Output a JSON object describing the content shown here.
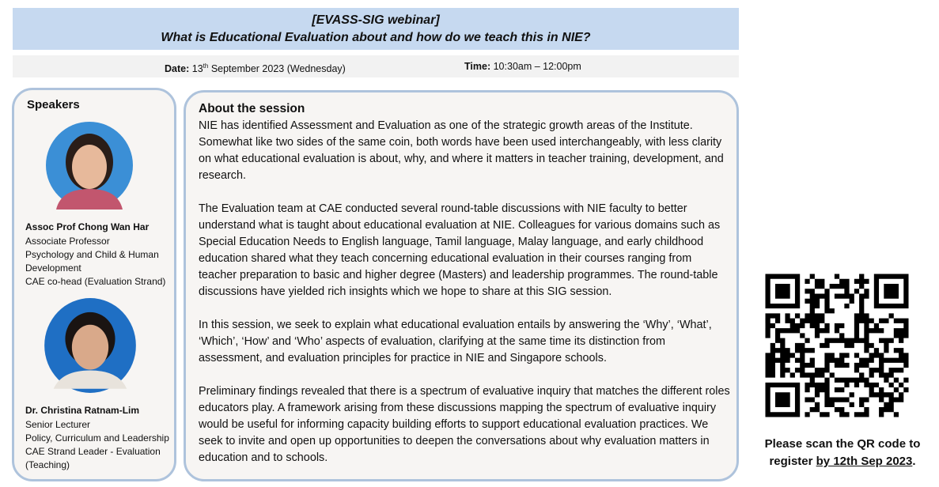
{
  "header": {
    "line1": "[EVASS-SIG webinar]",
    "line2": "What is Educational Evaluation about and how do we teach this in NIE?"
  },
  "date": {
    "label": "Date:",
    "day": "13",
    "suffix": "th",
    "rest": "September 2023 (Wednesday)"
  },
  "time": {
    "label": "Time:",
    "value": "10:30am – 12:00pm"
  },
  "speakers": {
    "title": "Speakers",
    "people": [
      {
        "name": "Assoc Prof Chong Wan Har",
        "roles": [
          "Associate Professor",
          "Psychology and Child & Human Development",
          "CAE co-head (Evaluation Strand)"
        ]
      },
      {
        "name": "Dr. Christina Ratnam-Lim",
        "roles": [
          "Senior Lecturer",
          "Policy, Curriculum and Leadership",
          "CAE Strand Leader - Evaluation (Teaching)"
        ]
      }
    ]
  },
  "session": {
    "title": "About the session",
    "paragraphs": [
      "NIE has identified Assessment and Evaluation as one of the strategic growth areas of the Institute. Somewhat like two sides of the same coin, both words have been used interchangeably, with less clarity on what educational evaluation is about, why, and where it matters in teacher training, development, and research.",
      "The Evaluation team at CAE conducted several round-table discussions with NIE faculty to better understand what is taught about educational evaluation at NIE. Colleagues for various domains such as Special Education Needs to English language, Tamil language, Malay language, and early childhood education shared what they teach concerning educational evaluation in their courses ranging from teacher preparation to basic and higher degree (Masters) and leadership programmes. The round-table discussions have yielded rich insights which we hope to share at this SIG session.",
      "In this session, we seek to explain what educational evaluation entails by answering the ‘Why’, ‘What’, ‘Which’, ‘How’ and ‘Who’ aspects of evaluation, clarifying at the same time its distinction from assessment, and evaluation principles for practice in NIE and Singapore schools.",
      "Preliminary findings revealed that there is a spectrum of evaluative inquiry that matches the different roles educators play. A framework arising from these discussions mapping the spectrum of evaluative inquiry would be useful for informing capacity building efforts to support educational evaluation practices. We seek to invite and open up opportunities to deepen the conversations about why evaluation matters in education and to schools."
    ]
  },
  "register": {
    "text": "Please scan the QR code to register",
    "deadline": "by 12th Sep 2023",
    "end": "."
  }
}
